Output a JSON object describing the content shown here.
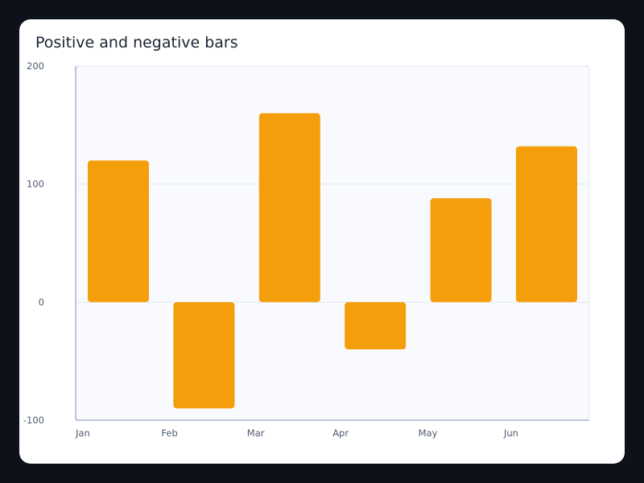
{
  "chart_data": {
    "type": "bar",
    "title": "Positive and negative bars",
    "xlabel": "",
    "ylabel": "",
    "categories": [
      "Jan",
      "Feb",
      "Mar",
      "Apr",
      "May",
      "Jun"
    ],
    "values": [
      120,
      -90,
      160,
      -40,
      88,
      132
    ],
    "ylim": [
      -100,
      200
    ],
    "yticks": [
      "200",
      "100",
      "0",
      "-100"
    ],
    "grid": true,
    "legend": "none",
    "colors": {
      "bar": "#f59e0b",
      "plot_background": "#f8fafd",
      "grid": "#e3e8ef",
      "axis": "#aab6cb"
    }
  }
}
